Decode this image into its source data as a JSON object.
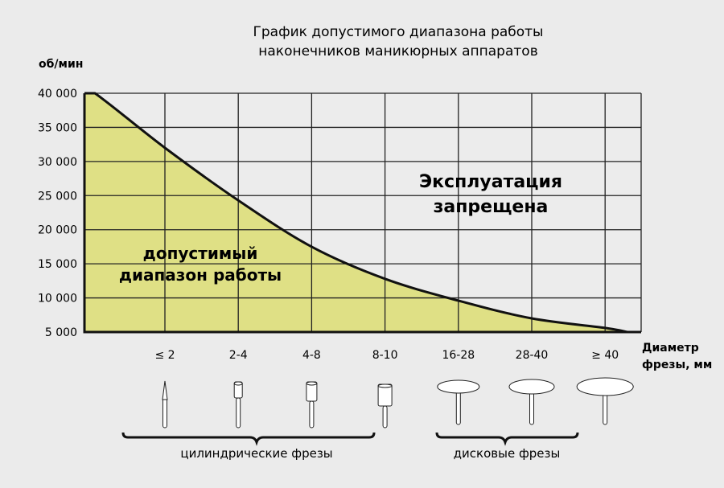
{
  "chart_data": {
    "type": "area",
    "title": [
      "График допустимого диапазона работы",
      "наконечников маникюрных аппаратов"
    ],
    "ylabel": "об/мин",
    "xlabel": [
      "Диаметр",
      "фрезы, мм"
    ],
    "yticks": [
      "40 000",
      "35 000",
      "30 000",
      "25 000",
      "20 000",
      "15 000",
      "10 000",
      "5 000"
    ],
    "ylim": [
      5000,
      40000
    ],
    "categories": [
      "≤ 2",
      "2-4",
      "4-8",
      "8-10",
      "16-28",
      "28-40",
      "≥ 40"
    ],
    "max_rpm_values": [
      32000,
      24300,
      17500,
      12800,
      9600,
      7000,
      5600
    ],
    "curve_start": 40000,
    "curve_end": 5000,
    "grid": true,
    "fill_color": "#dfe085",
    "regions": {
      "allowed": [
        "допустимый",
        "диапазон работы"
      ],
      "forbidden": [
        "Эксплуатация",
        "запрещена"
      ]
    },
    "groups": [
      {
        "label": "цилиндрические фрезы",
        "categories": [
          "≤ 2",
          "2-4",
          "4-8",
          "8-10"
        ]
      },
      {
        "label": "дисковые фрезы",
        "categories": [
          "16-28",
          "28-40",
          "≥ 40"
        ]
      }
    ],
    "icons": [
      "needle-bur-icon",
      "cylinder-bur-small-icon",
      "cylinder-bur-medium-icon",
      "cylinder-bur-large-icon",
      "disc-bur-small-icon",
      "disc-bur-medium-icon",
      "disc-bur-large-icon"
    ]
  }
}
